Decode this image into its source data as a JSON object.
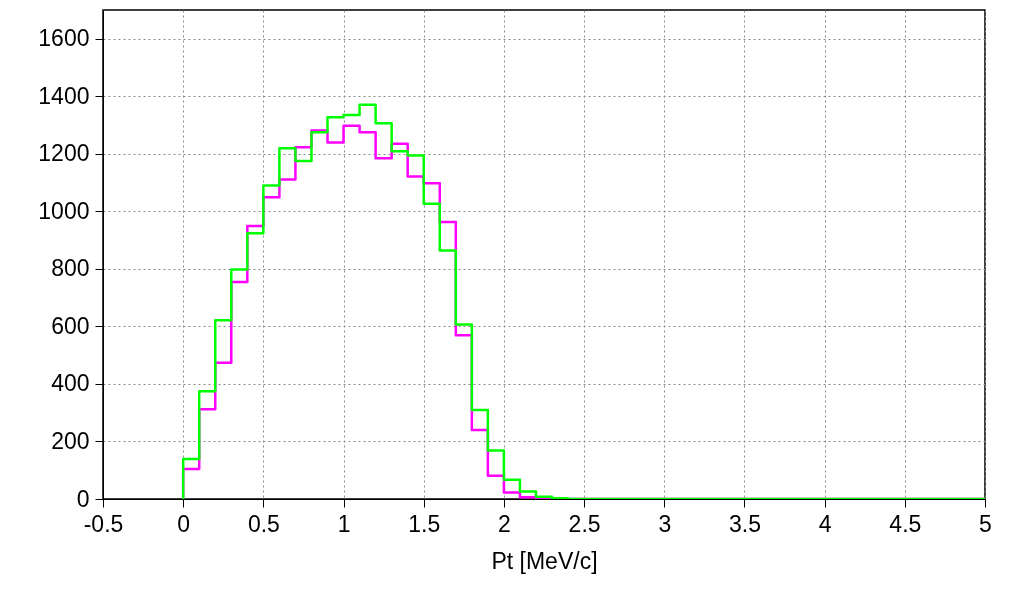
{
  "chart_data": {
    "type": "histogram",
    "xlabel": "Pt [MeV/c]",
    "bins": [
      0,
      0.1,
      0.2,
      0.3,
      0.4,
      0.5,
      0.6,
      0.7,
      0.8,
      0.9,
      1,
      1.1,
      1.2,
      1.3,
      1.4,
      1.5,
      1.6,
      1.7,
      1.8,
      1.9,
      2,
      2.1,
      2.2,
      2.3,
      2.4,
      2.5,
      2.6,
      2.7,
      2.8,
      2.9,
      3,
      3.1,
      3.2,
      3.3,
      3.4,
      3.5,
      3.6,
      3.7,
      3.8,
      3.9,
      4,
      4.1,
      4.2,
      4.3,
      4.4,
      4.5,
      4.6,
      4.7,
      4.8,
      4.9,
      5
    ],
    "series": [
      {
        "color": "#ff00ff",
        "values": [
          104,
          312,
          474,
          754,
          949,
          1049,
          1111,
          1223,
          1281,
          1239,
          1298,
          1275,
          1185,
          1235,
          1121,
          1098,
          963,
          569,
          240,
          81,
          23,
          6,
          2,
          0,
          0,
          0,
          0,
          0,
          0,
          0,
          0,
          0,
          0,
          0,
          0,
          0,
          0,
          0,
          0,
          0,
          0,
          0,
          0,
          0,
          0,
          0,
          0,
          0,
          0,
          0
        ]
      },
      {
        "color": "#00ff00",
        "values": [
          139,
          375,
          621,
          798,
          924,
          1090,
          1219,
          1175,
          1275,
          1327,
          1335,
          1371,
          1306,
          1209,
          1194,
          1026,
          864,
          607,
          309,
          169,
          67,
          26,
          8,
          3,
          0,
          0,
          0,
          0,
          0,
          0,
          0,
          0,
          0,
          0,
          0,
          0,
          0,
          0,
          0,
          0,
          0,
          0,
          0,
          0,
          0,
          0,
          0,
          0,
          0,
          0
        ]
      }
    ],
    "xlim": [
      -0.5,
      5
    ],
    "xticks": [
      -0.5,
      0,
      0.5,
      1,
      1.5,
      2,
      2.5,
      3,
      3.5,
      4,
      4.5,
      5
    ],
    "ylim": [
      0,
      1700
    ],
    "yticks": [
      0,
      200,
      400,
      600,
      800,
      1000,
      1200,
      1400,
      1600
    ],
    "grid": true
  }
}
